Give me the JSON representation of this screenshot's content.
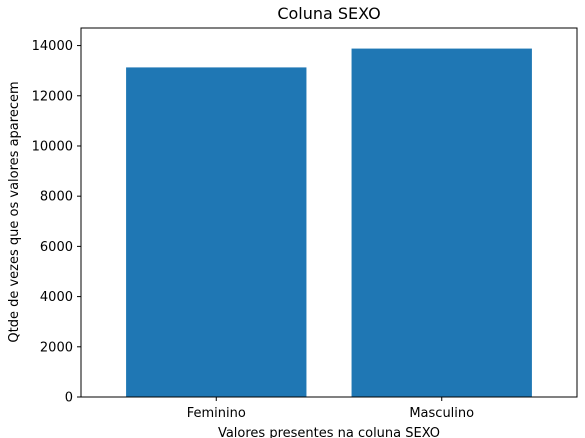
{
  "chart_data": {
    "type": "bar",
    "title": "Coluna SEXO",
    "xlabel": "Valores presentes na coluna SEXO",
    "ylabel": "Qtde de vezes que os valores aparecem",
    "categories": [
      "Feminino",
      "Masculino"
    ],
    "values": [
      13130,
      13880
    ],
    "ylim": [
      0,
      14700
    ],
    "yticks": [
      0,
      2000,
      4000,
      6000,
      8000,
      10000,
      12000,
      14000
    ],
    "bar_color": "#1f77b4",
    "grid": false,
    "legend": false
  }
}
